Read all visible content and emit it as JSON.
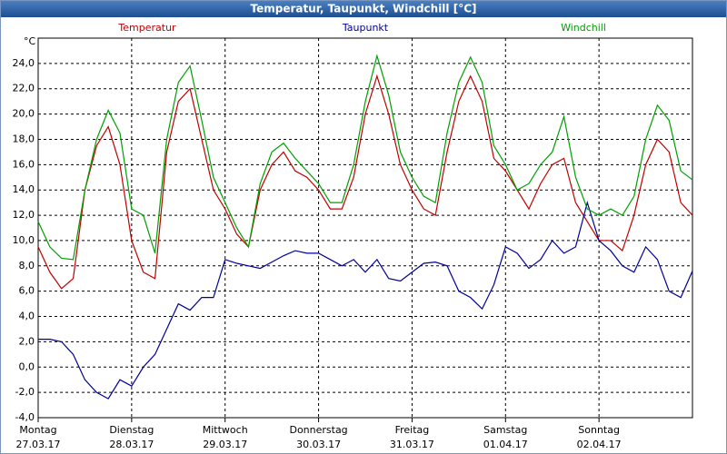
{
  "chart_data": {
    "type": "line",
    "title": "Temperatur, Taupunkt, Windchill [°C]",
    "y_label": "°C",
    "categories": [
      [
        "Montag",
        "27.03.17"
      ],
      null,
      null,
      null,
      null,
      null,
      null,
      null,
      [
        "Dienstag",
        "28.03.17"
      ],
      null,
      null,
      null,
      null,
      null,
      null,
      null,
      [
        "Mittwoch",
        "29.03.17"
      ],
      null,
      null,
      null,
      null,
      null,
      null,
      null,
      [
        "Donnerstag",
        "30.03.17"
      ],
      null,
      null,
      null,
      null,
      null,
      null,
      null,
      [
        "Freitag",
        "31.03.17"
      ],
      null,
      null,
      null,
      null,
      null,
      null,
      null,
      [
        "Samstag",
        "01.04.17"
      ],
      null,
      null,
      null,
      null,
      null,
      null,
      null,
      [
        "Sonntag",
        "02.04.17"
      ],
      null,
      null,
      null,
      null,
      null,
      null,
      null,
      null
    ],
    "series": [
      {
        "name": "Temperatur",
        "color": "#c00000",
        "values": [
          9.5,
          7.5,
          6.2,
          7,
          14,
          17.5,
          19,
          16,
          10,
          7.5,
          7,
          17,
          21,
          22,
          18,
          14,
          12.5,
          10.5,
          9.5,
          14,
          16,
          17,
          15.5,
          15,
          14,
          12.5,
          12.5,
          15,
          20,
          23,
          20,
          16,
          14,
          12.5,
          12,
          17,
          21,
          23,
          21,
          16.5,
          15.5,
          14,
          12.5,
          14.5,
          16,
          16.5,
          13,
          11.5,
          10,
          10,
          9.2,
          12,
          16,
          18,
          17,
          13,
          12
        ]
      },
      {
        "name": "Taupunkt",
        "color": "#000099",
        "values": [
          2.2,
          2.2,
          2,
          1,
          -1,
          -2,
          -2.5,
          -1,
          -1.5,
          0,
          1,
          3,
          5,
          4.5,
          5.5,
          5.5,
          8.5,
          8.2,
          8,
          7.8,
          8.3,
          8.8,
          9.2,
          9,
          9,
          8.5,
          8,
          8.5,
          7.5,
          8.5,
          7,
          6.8,
          7.5,
          8.2,
          8.3,
          8,
          6,
          5.5,
          4.6,
          6.5,
          9.5,
          9,
          7.8,
          8.5,
          10,
          9,
          9.5,
          13,
          10,
          9.2,
          8,
          7.5,
          9.5,
          8.5,
          6,
          5.5,
          7.6
        ]
      },
      {
        "name": "Windchill",
        "color": "#00a000",
        "values": [
          11.5,
          9.5,
          8.6,
          8.5,
          14,
          18,
          20.3,
          18.5,
          12.5,
          12,
          9,
          18,
          22.5,
          23.8,
          19.5,
          15,
          13,
          11,
          9.5,
          14.5,
          17,
          17.7,
          16.5,
          15.5,
          14.5,
          13,
          13,
          16,
          21,
          24.6,
          21.5,
          17,
          15,
          13.5,
          13,
          18.5,
          22.5,
          24.5,
          22.5,
          17.5,
          16,
          14,
          14.5,
          16,
          17,
          19.8,
          15,
          12.5,
          12,
          12.5,
          12,
          13.5,
          18,
          20.7,
          19.5,
          15.5,
          14.8
        ]
      }
    ],
    "ylim": [
      -4,
      26
    ],
    "yticks": [
      {
        "value": -4,
        "label": "-4,0"
      },
      {
        "value": -2,
        "label": "-2,0"
      },
      {
        "value": 0,
        "label": "0,0"
      },
      {
        "value": 2,
        "label": "2,0"
      },
      {
        "value": 4,
        "label": "4,0"
      },
      {
        "value": 6,
        "label": "6,0"
      },
      {
        "value": 8,
        "label": "8,0"
      },
      {
        "value": 10,
        "label": "10,0"
      },
      {
        "value": 12,
        "label": "12,0"
      },
      {
        "value": 14,
        "label": "14,0"
      },
      {
        "value": 16,
        "label": "16,0"
      },
      {
        "value": 18,
        "label": "18,0"
      },
      {
        "value": 20,
        "label": "20,0"
      },
      {
        "value": 22,
        "label": "22,0"
      },
      {
        "value": 24,
        "label": "24,0"
      }
    ],
    "grid": true
  }
}
